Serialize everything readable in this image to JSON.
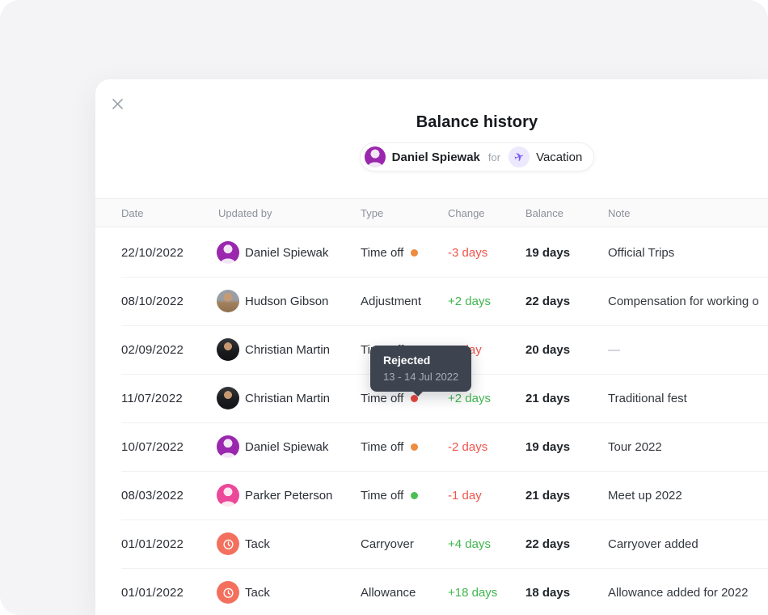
{
  "modal": {
    "title": "Balance history",
    "subject": {
      "employee": "Daniel Spiewak",
      "connector": "for",
      "policy": "Vacation",
      "policy_icon": "airplane",
      "employee_avatar_color": "#9A27AE",
      "policy_icon_color": "#7A5AF8",
      "policy_icon_bg": "#ECE8FD"
    }
  },
  "table": {
    "columns": [
      "Date",
      "Updated by",
      "Type",
      "Change",
      "Balance",
      "Note"
    ],
    "dot_colors": {
      "orange": "#EE8C3F",
      "red": "#E8473D",
      "green": "#4CBE56"
    },
    "change_colors": {
      "neg": "#F0544C",
      "pos": "#3FB54E"
    },
    "rows": [
      {
        "date": "22/10/2022",
        "updated_by": "Daniel Spiewak",
        "avatar": "daniel",
        "type": "Time off",
        "dot": "orange",
        "change": "-3 days",
        "change_dir": "neg",
        "balance": "19 days",
        "note": "Official Trips"
      },
      {
        "date": "08/10/2022",
        "updated_by": "Hudson Gibson",
        "avatar": "hudson",
        "type": "Adjustment",
        "dot": null,
        "change": "+2 days",
        "change_dir": "pos",
        "balance": "22 days",
        "note": "Compensation for working o"
      },
      {
        "date": "02/09/2022",
        "updated_by": "Christian Martin",
        "avatar": "christian",
        "type": "Time off",
        "dot": "orange",
        "change": "-1 day",
        "change_dir": "neg",
        "balance": "20 days",
        "note": "—",
        "note_muted": true
      },
      {
        "date": "11/07/2022",
        "updated_by": "Christian Martin",
        "avatar": "christian",
        "type": "Time off",
        "dot": "red",
        "change": "+2 days",
        "change_dir": "pos",
        "balance": "21 days",
        "note": "Traditional fest"
      },
      {
        "date": "10/07/2022",
        "updated_by": "Daniel Spiewak",
        "avatar": "daniel",
        "type": "Time off",
        "dot": "orange",
        "change": "-2 days",
        "change_dir": "neg",
        "balance": "19 days",
        "note": "Tour 2022"
      },
      {
        "date": "08/03/2022",
        "updated_by": "Parker Peterson",
        "avatar": "parker",
        "type": "Time off",
        "dot": "green",
        "change": "-1 day",
        "change_dir": "neg",
        "balance": "21 days",
        "note": "Meet up 2022"
      },
      {
        "date": "01/01/2022",
        "updated_by": "Tack",
        "avatar": "tack",
        "type": "Carryover",
        "dot": null,
        "change": "+4 days",
        "change_dir": "pos",
        "balance": "22 days",
        "note": "Carryover added"
      },
      {
        "date": "01/01/2022",
        "updated_by": "Tack",
        "avatar": "tack",
        "type": "Allowance",
        "dot": null,
        "change": "+18 days",
        "change_dir": "pos",
        "balance": "18 days",
        "note": "Allowance added for 2022"
      }
    ]
  },
  "tooltip": {
    "status": "Rejected",
    "date_range": "13 - 14 Jul 2022",
    "background": "#3D434F"
  }
}
